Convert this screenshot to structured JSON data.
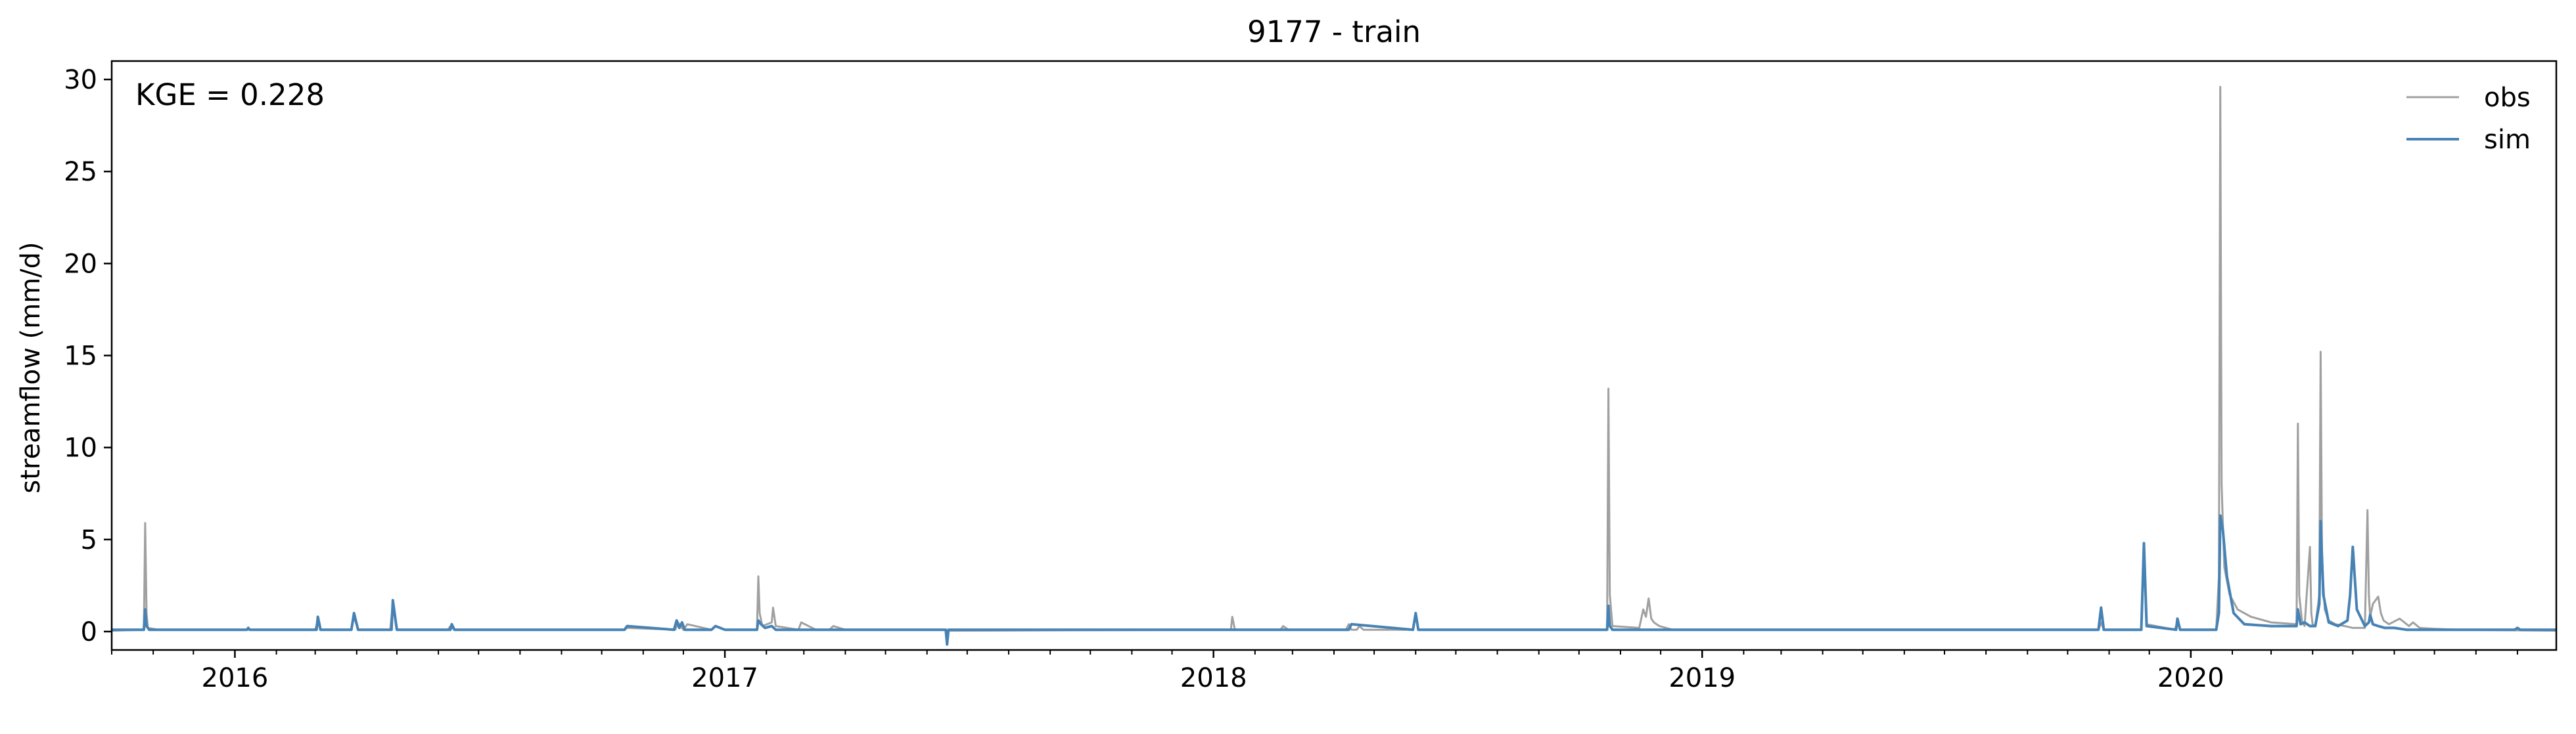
{
  "chart_data": {
    "type": "line",
    "title": "9177 - train",
    "xlabel": "",
    "ylabel": "streamflow (mm/d)",
    "annotation": "KGE = 0.228",
    "xlim": [
      "2015-10-01",
      "2020-09-30"
    ],
    "ylim": [
      -1.0,
      31.0
    ],
    "grid": false,
    "legend_position": "top-right",
    "x_ticks": [
      "2016",
      "2017",
      "2018",
      "2019",
      "2020"
    ],
    "y_ticks": [
      "0",
      "5",
      "10",
      "15",
      "20",
      "25",
      "30"
    ],
    "series": [
      {
        "name": "obs",
        "color": "#a0a0a0",
        "x": [
          "2015-10-01",
          "2015-10-25",
          "2015-10-26",
          "2015-10-27",
          "2015-10-28",
          "2015-11-05",
          "2016-01-10",
          "2016-01-11",
          "2016-01-12",
          "2016-03-01",
          "2016-03-03",
          "2016-03-05",
          "2016-03-28",
          "2016-03-30",
          "2016-04-02",
          "2016-04-26",
          "2016-04-28",
          "2016-05-01",
          "2016-06-08",
          "2016-06-10",
          "2016-06-13",
          "2016-10-18",
          "2016-10-20",
          "2016-11-25",
          "2016-11-27",
          "2016-12-01",
          "2016-12-04",
          "2016-12-22",
          "2016-12-25",
          "2017-01-01",
          "2017-01-25",
          "2017-01-26",
          "2017-01-27",
          "2017-01-29",
          "2017-02-05",
          "2017-02-06",
          "2017-02-08",
          "2017-02-25",
          "2017-02-27",
          "2017-03-10",
          "2017-03-20",
          "2017-03-23",
          "2017-04-01",
          "2017-06-15",
          "2017-06-16",
          "2017-06-17",
          "2018-01-14",
          "2018-01-15",
          "2018-01-17",
          "2018-02-20",
          "2018-02-22",
          "2018-02-26",
          "2018-04-10",
          "2018-04-12",
          "2018-04-14",
          "2018-04-18",
          "2018-04-20",
          "2018-04-23",
          "2018-05-30",
          "2018-06-01",
          "2018-06-03",
          "2018-10-22",
          "2018-10-23",
          "2018-10-24",
          "2018-10-26",
          "2018-11-15",
          "2018-11-18",
          "2018-11-20",
          "2018-11-22",
          "2018-11-24",
          "2018-11-26",
          "2018-11-30",
          "2018-12-05",
          "2018-12-10",
          "2019-10-24",
          "2019-10-26",
          "2019-10-28",
          "2019-11-25",
          "2019-11-27",
          "2019-11-29",
          "2019-12-20",
          "2019-12-22",
          "2019-12-24",
          "2020-01-20",
          "2020-01-22",
          "2020-01-23",
          "2020-01-24",
          "2020-01-26",
          "2020-01-30",
          "2020-02-05",
          "2020-02-15",
          "2020-03-01",
          "2020-03-20",
          "2020-03-21",
          "2020-03-22",
          "2020-03-24",
          "2020-03-26",
          "2020-03-30",
          "2020-03-31",
          "2020-04-01",
          "2020-04-03",
          "2020-04-06",
          "2020-04-07",
          "2020-04-08",
          "2020-04-10",
          "2020-04-13",
          "2020-04-18",
          "2020-04-25",
          "2020-05-01",
          "2020-05-10",
          "2020-05-12",
          "2020-05-13",
          "2020-05-14",
          "2020-05-16",
          "2020-05-20",
          "2020-05-22",
          "2020-05-24",
          "2020-05-28",
          "2020-06-05",
          "2020-06-12",
          "2020-06-15",
          "2020-06-20",
          "2020-07-01",
          "2020-07-20",
          "2020-09-30"
        ],
        "values": [
          0.05,
          0.1,
          5.9,
          1.0,
          0.2,
          0.1,
          0.1,
          0.2,
          0.1,
          0.1,
          0.6,
          0.1,
          0.1,
          0.8,
          0.1,
          0.1,
          1.5,
          0.1,
          0.1,
          0.3,
          0.1,
          0.1,
          0.2,
          0.1,
          0.5,
          0.1,
          0.4,
          0.1,
          0.3,
          0.1,
          0.1,
          3.0,
          1.0,
          0.3,
          0.5,
          1.3,
          0.3,
          0.1,
          0.5,
          0.1,
          0.1,
          0.3,
          0.1,
          0.1,
          -0.6,
          0.05,
          0.1,
          0.8,
          0.1,
          0.1,
          0.3,
          0.1,
          0.1,
          0.4,
          0.1,
          0.1,
          0.3,
          0.1,
          0.1,
          0.9,
          0.1,
          0.1,
          13.2,
          2.0,
          0.3,
          0.2,
          1.2,
          0.8,
          1.8,
          0.7,
          0.5,
          0.3,
          0.2,
          0.1,
          0.1,
          0.5,
          0.1,
          0.1,
          4.0,
          0.4,
          0.1,
          0.5,
          0.1,
          0.1,
          3.0,
          29.6,
          8.0,
          3.5,
          2.0,
          1.2,
          0.8,
          0.5,
          0.4,
          11.3,
          2.0,
          0.6,
          0.3,
          4.6,
          1.0,
          0.4,
          0.3,
          2.0,
          15.2,
          4.0,
          1.2,
          0.6,
          0.4,
          0.3,
          0.2,
          0.2,
          6.6,
          2.0,
          0.8,
          1.5,
          1.9,
          1.0,
          0.6,
          0.4,
          0.7,
          0.3,
          0.5,
          0.2,
          0.15,
          0.1,
          0.05
        ]
      },
      {
        "name": "sim",
        "color": "#4682b4",
        "x": [
          "2015-10-01",
          "2015-10-25",
          "2015-10-26",
          "2015-10-27",
          "2015-10-29",
          "2016-01-10",
          "2016-01-11",
          "2016-01-12",
          "2016-03-02",
          "2016-03-03",
          "2016-03-05",
          "2016-03-28",
          "2016-03-30",
          "2016-04-02",
          "2016-04-27",
          "2016-04-28",
          "2016-05-01",
          "2016-06-10",
          "2016-06-11",
          "2016-06-13",
          "2016-10-18",
          "2016-10-20",
          "2016-11-24",
          "2016-11-26",
          "2016-11-28",
          "2016-11-30",
          "2016-12-02",
          "2016-12-22",
          "2016-12-25",
          "2017-01-01",
          "2017-01-25",
          "2017-01-26",
          "2017-01-28",
          "2017-01-31",
          "2017-02-05",
          "2017-02-08",
          "2017-06-15",
          "2017-06-16",
          "2017-06-17",
          "2018-04-12",
          "2018-04-14",
          "2018-05-30",
          "2018-06-01",
          "2018-06-03",
          "2018-10-22",
          "2018-10-23",
          "2018-10-24",
          "2018-10-26",
          "2019-10-24",
          "2019-10-26",
          "2019-10-28",
          "2019-11-25",
          "2019-11-27",
          "2019-11-29",
          "2019-12-21",
          "2019-12-22",
          "2019-12-24",
          "2020-01-20",
          "2020-01-22",
          "2020-01-23",
          "2020-01-25",
          "2020-01-28",
          "2020-02-02",
          "2020-02-10",
          "2020-03-01",
          "2020-03-20",
          "2020-03-21",
          "2020-03-23",
          "2020-03-26",
          "2020-03-30",
          "2020-04-03",
          "2020-04-06",
          "2020-04-07",
          "2020-04-09",
          "2020-04-13",
          "2020-04-20",
          "2020-04-27",
          "2020-04-29",
          "2020-05-01",
          "2020-05-04",
          "2020-05-10",
          "2020-05-13",
          "2020-05-14",
          "2020-05-16",
          "2020-05-20",
          "2020-05-25",
          "2020-06-01",
          "2020-06-10",
          "2020-07-01",
          "2020-08-30",
          "2020-09-01",
          "2020-09-03",
          "2020-09-30"
        ],
        "values": [
          0.1,
          0.1,
          1.2,
          0.3,
          0.1,
          0.1,
          0.2,
          0.1,
          0.1,
          0.8,
          0.1,
          0.1,
          1.0,
          0.1,
          0.1,
          1.7,
          0.1,
          0.1,
          0.4,
          0.1,
          0.1,
          0.3,
          0.1,
          0.6,
          0.2,
          0.5,
          0.1,
          0.1,
          0.3,
          0.1,
          0.1,
          0.6,
          0.4,
          0.2,
          0.3,
          0.1,
          0.1,
          -0.7,
          0.1,
          0.1,
          0.4,
          0.1,
          1.0,
          0.1,
          0.1,
          1.4,
          0.3,
          0.1,
          0.1,
          1.3,
          0.1,
          0.1,
          4.8,
          0.3,
          0.1,
          0.7,
          0.1,
          0.1,
          1.0,
          6.3,
          5.5,
          3.0,
          1.0,
          0.4,
          0.3,
          0.3,
          1.2,
          0.4,
          0.5,
          0.3,
          0.3,
          1.5,
          6.0,
          2.0,
          0.5,
          0.3,
          0.6,
          2.0,
          4.6,
          1.2,
          0.3,
          0.5,
          0.9,
          0.4,
          0.3,
          0.2,
          0.2,
          0.1,
          0.1,
          0.1,
          0.2,
          0.1,
          0.1
        ]
      }
    ]
  }
}
